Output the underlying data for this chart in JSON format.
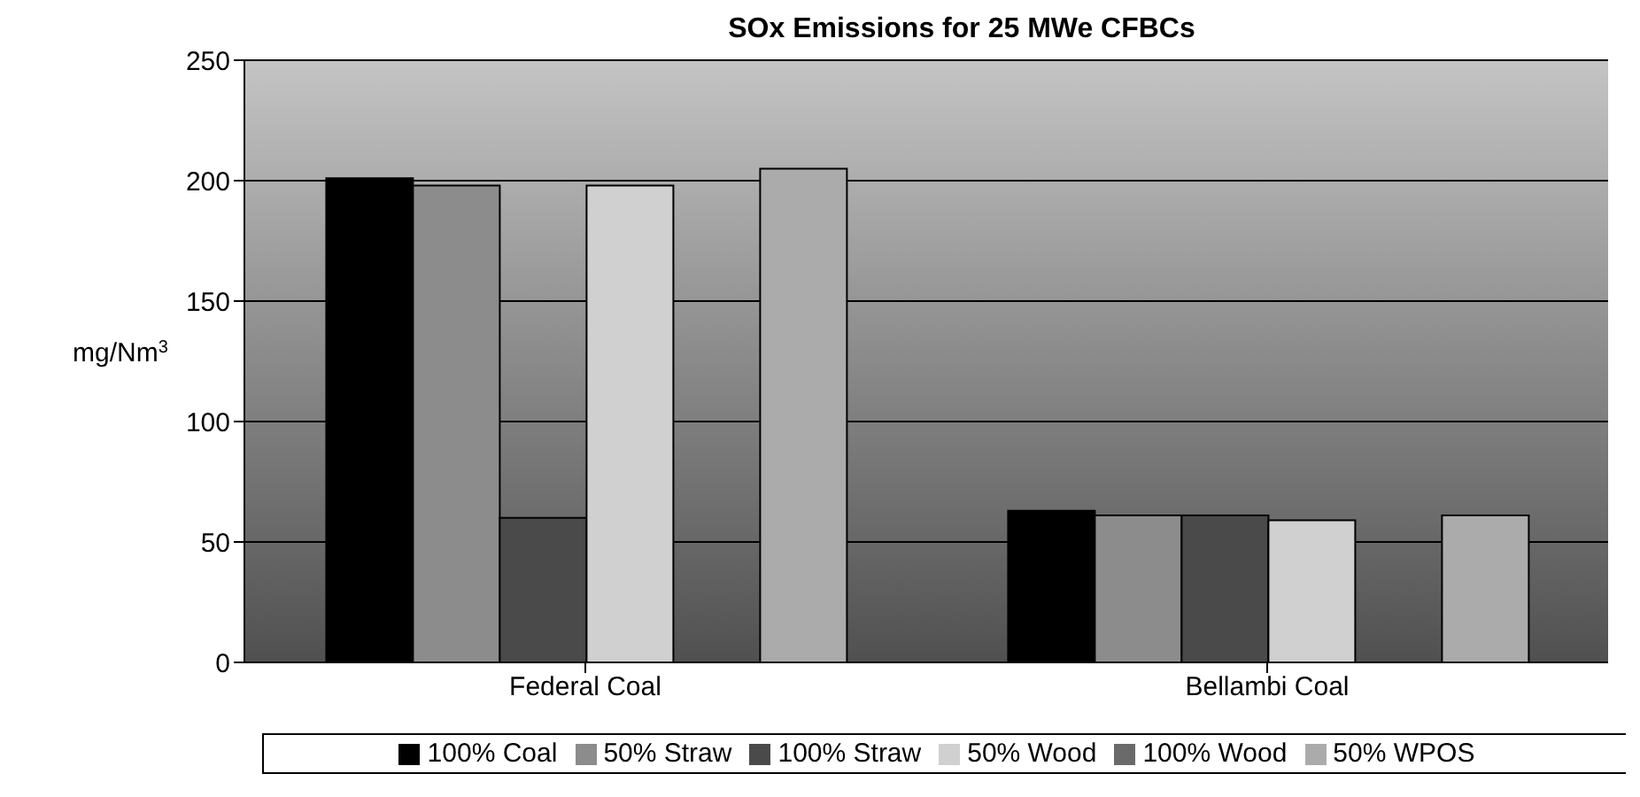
{
  "chart_data": {
    "type": "bar",
    "title": "SOx Emissions for 25 MWe CFBCs",
    "ylabel": "mg/Nm$^{3}$",
    "categories": [
      "Federal Coal",
      "Bellambi Coal"
    ],
    "series": [
      {
        "name": "100% Coal",
        "color": "#000000",
        "values": [
          201,
          63
        ]
      },
      {
        "name": "50% Straw",
        "color": "#8c8c8c",
        "values": [
          198,
          61
        ]
      },
      {
        "name": "100% Straw",
        "color": "#4a4a4a",
        "values": [
          60,
          61
        ]
      },
      {
        "name": "50% Wood",
        "color": "#d0d0d0",
        "values": [
          198,
          59
        ]
      },
      {
        "name": "100% Wood",
        "color": "#6a6a6a",
        "values": [
          null,
          null
        ]
      },
      {
        "name": "50% WPOS",
        "color": "#ababab",
        "values": [
          205,
          61
        ]
      }
    ],
    "ylim": [
      0,
      250
    ],
    "yticks": [
      0,
      50,
      100,
      150,
      200,
      250
    ],
    "grid": "y",
    "legend": "bottom"
  }
}
